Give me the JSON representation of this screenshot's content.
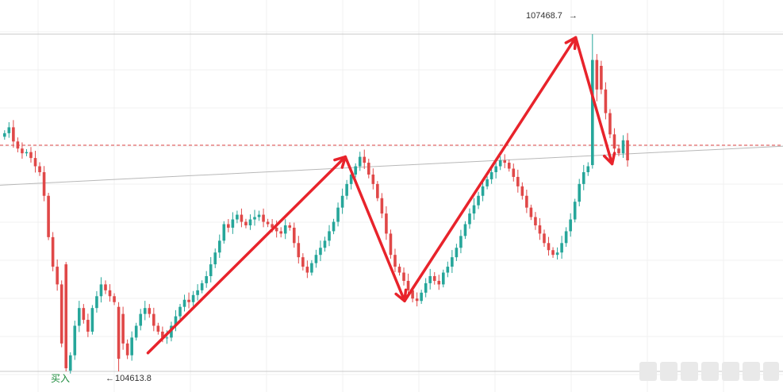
{
  "chart_data": {
    "type": "candlestick",
    "title": "",
    "xlabel": "",
    "ylabel": "",
    "grid": true,
    "ylim": [
      104550,
      107600
    ],
    "colors": {
      "up": "#26a69a",
      "down": "#e04848",
      "arrow": "#e8232b",
      "trendline": "#b8b8b8",
      "level": "#e04848",
      "extreme_line": "#c8c8c8",
      "grid": "#f1f1f1",
      "buy_label": "#1a8a3a"
    },
    "annotations": {
      "high_label": "107468.7",
      "low_label": "104613.8",
      "buy_label": "买入",
      "high_value": 107468.7,
      "low_value": 104613.8,
      "horizontal_level": 106528,
      "trendline_start": 106190,
      "trendline_end": 106520
    },
    "arrows": [
      {
        "from_candle": 0,
        "from_price": 104770,
        "to_candle": 0,
        "to_price": 106430
      },
      {
        "from_candle": 0,
        "from_price": 106430,
        "to_candle": 0,
        "to_price": 105210
      },
      {
        "from_candle": 0,
        "from_price": 105210,
        "to_candle": 0,
        "to_price": 107440
      },
      {
        "from_candle": 0,
        "from_price": 107440,
        "to_candle": 0,
        "to_price": 106370
      }
    ],
    "candles": []
  }
}
